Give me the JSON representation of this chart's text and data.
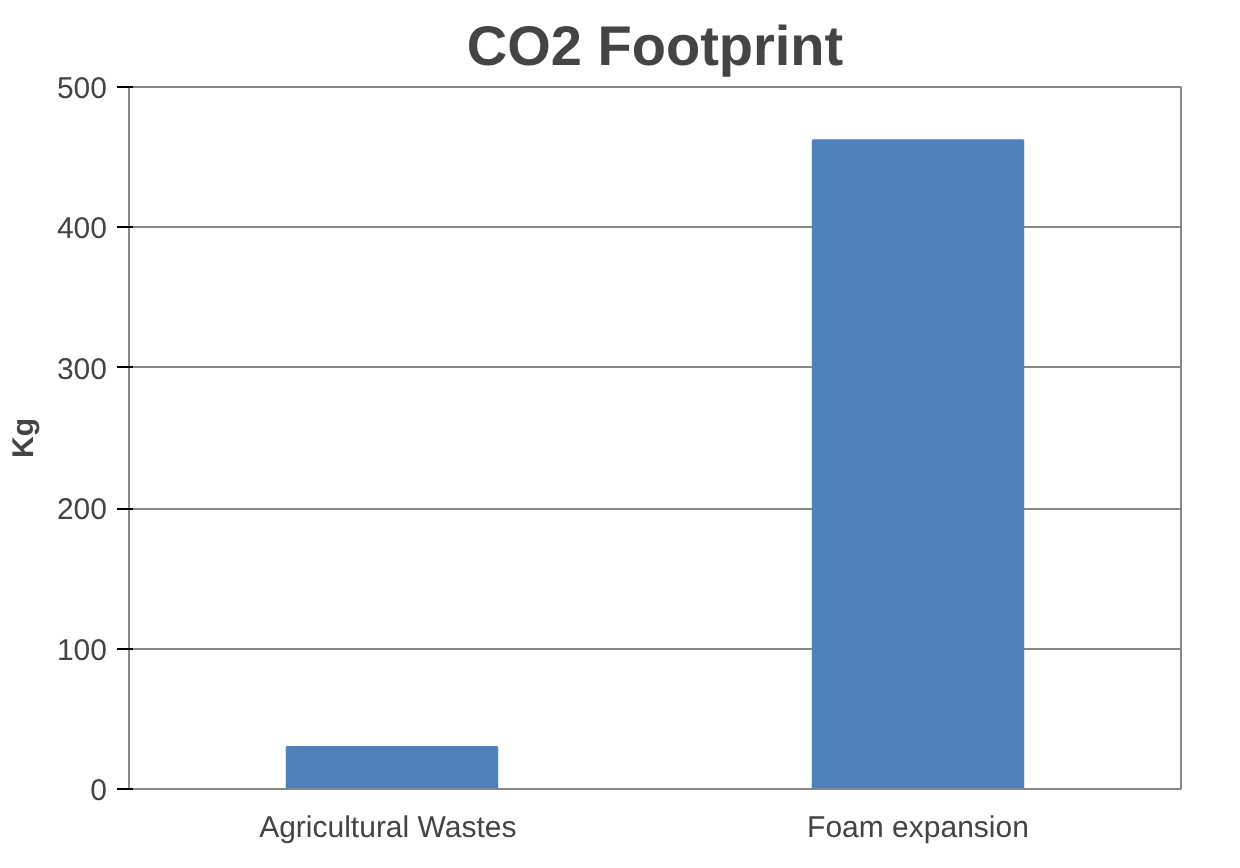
{
  "chart_data": {
    "type": "bar",
    "title": "CO2 Footprint",
    "ylabel": "Kg",
    "categories": [
      "Agricultural  Wastes",
      "Foam expansion"
    ],
    "values": [
      30,
      462
    ],
    "color": "#4f81bd",
    "ylim": [
      0,
      500
    ],
    "yticks": [
      0,
      100,
      200,
      300,
      400,
      500
    ],
    "grid": "y"
  }
}
